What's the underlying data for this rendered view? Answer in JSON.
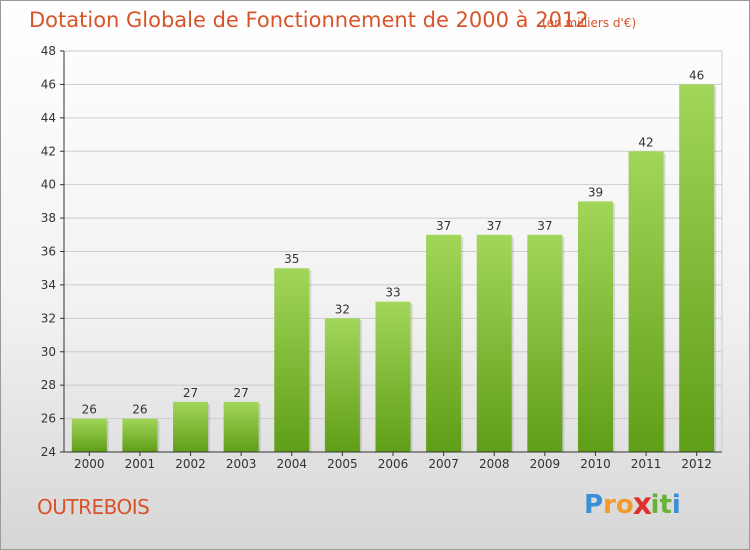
{
  "title": "Dotation Globale de Fonctionnement de 2000 à 2012",
  "subtitle": "(en milliers d'€)",
  "town": "OUTREBOIS",
  "logo": {
    "letters": [
      "P",
      "r",
      "o",
      "x",
      "i",
      "t",
      "i"
    ],
    "colors": [
      "#3a8fd6",
      "#f29a2e",
      "#f29a2e",
      "#e0312c",
      "#69b23a",
      "#69b23a",
      "#3a8fd6"
    ]
  },
  "chart_data": {
    "type": "bar",
    "categories": [
      "2000",
      "2001",
      "2002",
      "2003",
      "2004",
      "2005",
      "2006",
      "2007",
      "2008",
      "2009",
      "2010",
      "2011",
      "2012"
    ],
    "values": [
      26,
      26,
      27,
      27,
      35,
      32,
      33,
      37,
      37,
      37,
      39,
      42,
      46
    ],
    "ylim": [
      24,
      48
    ],
    "yticks": [
      24,
      26,
      28,
      30,
      32,
      34,
      36,
      38,
      40,
      42,
      44,
      46,
      48
    ],
    "grid": true,
    "colors": {
      "bar_top": "#a2d65a",
      "bar_bottom": "#5f9e17",
      "grid": "#cccccc",
      "axis": "#333333",
      "text": "#333333"
    }
  }
}
